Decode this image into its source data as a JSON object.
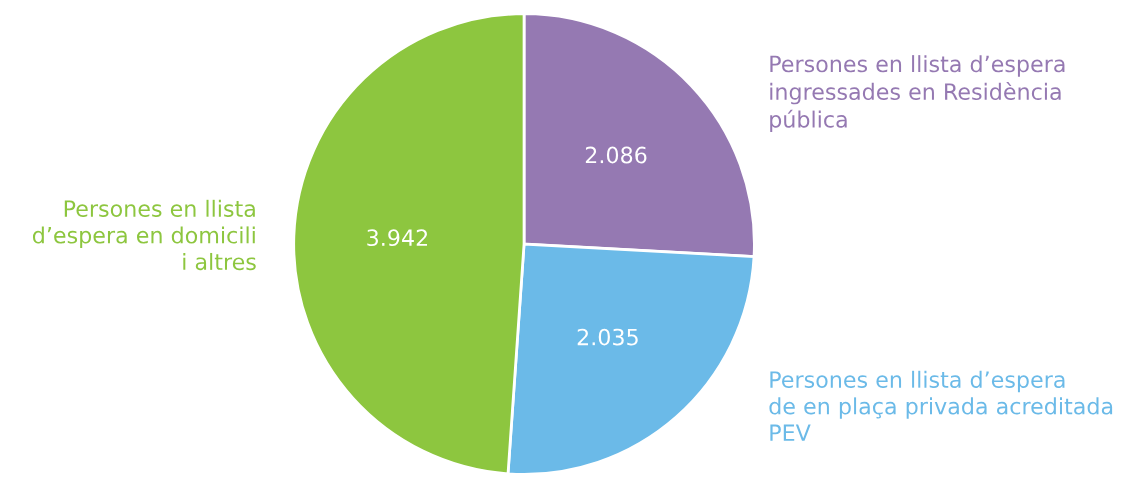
{
  "chart_data": {
    "type": "pie",
    "categories": [
      "Persones en llista d’espera\ningressades en Residència\npública",
      "Persones en llista d’espera\nde en plaça privada acreditada\nPEV",
      "Persones en llista\nd’espera en domicili\ni altres"
    ],
    "values": [
      2086,
      2035,
      3942
    ],
    "value_labels": [
      "2.086",
      "2.035",
      "3.942"
    ],
    "colors": [
      "#9579b2",
      "#6bbae8",
      "#8dc63f"
    ]
  }
}
